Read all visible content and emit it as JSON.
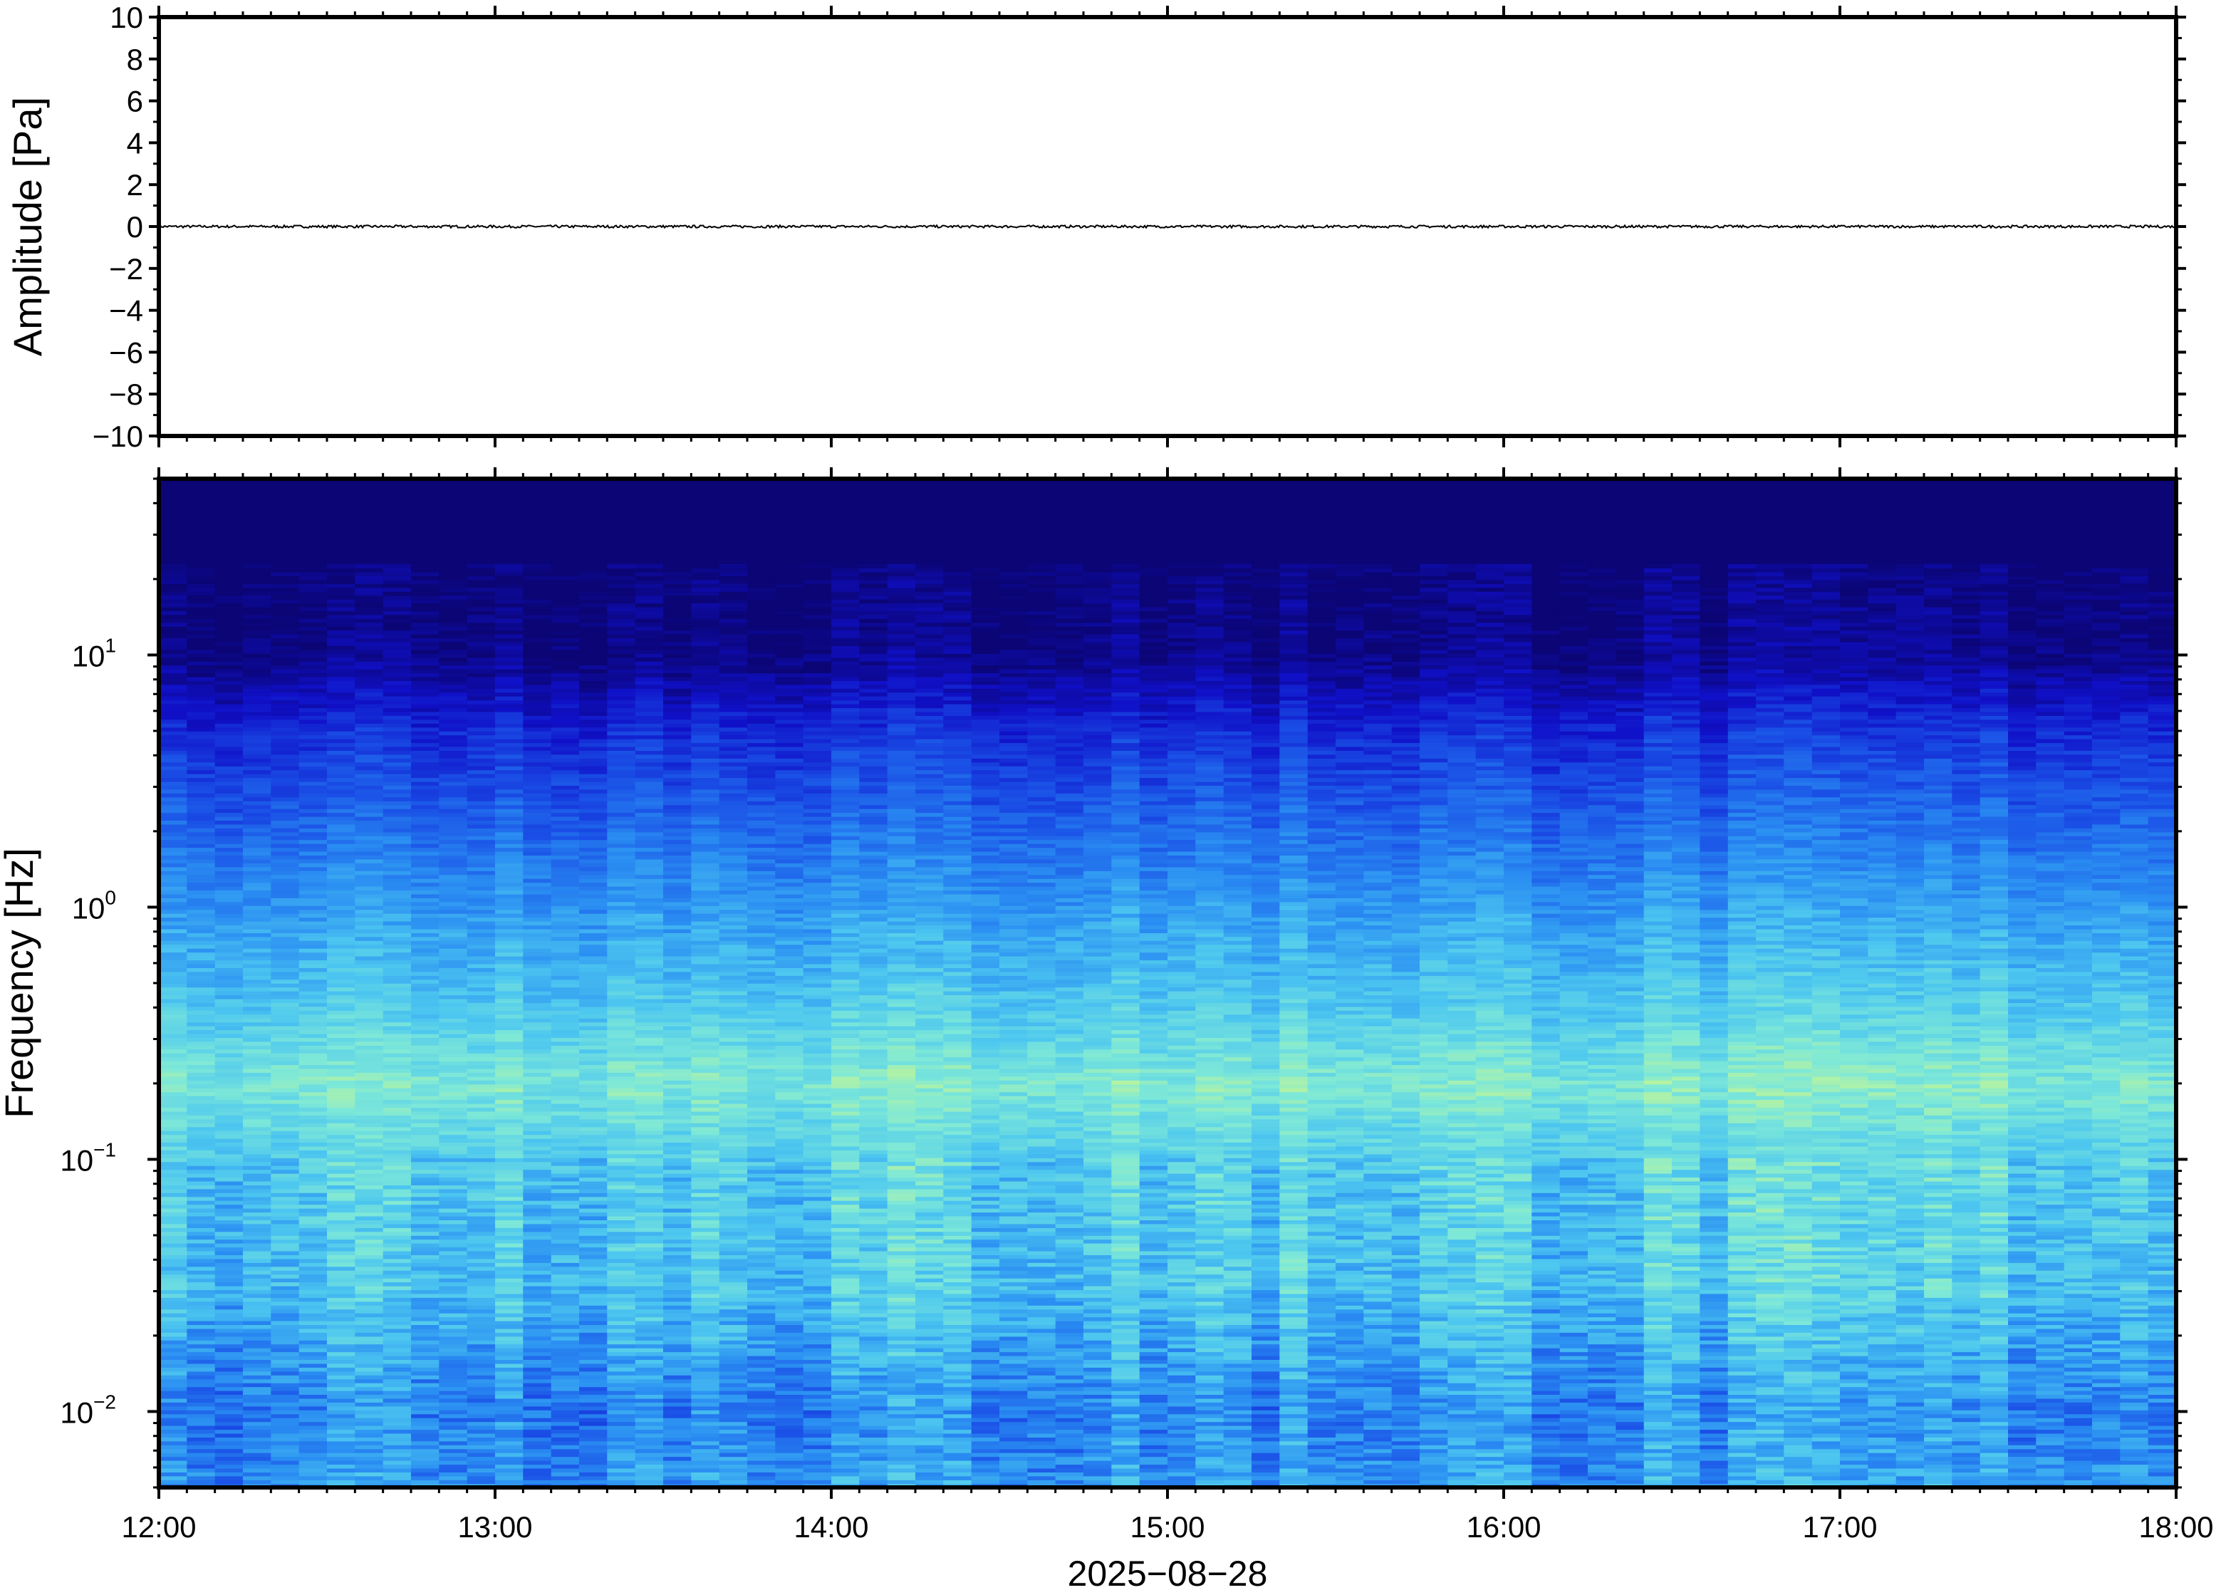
{
  "chart_data": [
    {
      "type": "line",
      "ylabel": "Amplitude [Pa]",
      "ylim": [
        -10,
        10
      ],
      "xlim": [
        "2025-08-28 12:00",
        "2025-08-28 18:00"
      ],
      "y_ticks": [
        10,
        8,
        6,
        4,
        2,
        0,
        -2,
        -4,
        -6,
        -8,
        -10
      ],
      "y_tick_labels": [
        "10",
        "8",
        "6",
        "4",
        "2",
        "0",
        "−2",
        "−4",
        "−6",
        "−8",
        "−10"
      ],
      "series": [
        {
          "x_range": [
            "2025-08-28 12:00",
            "2025-08-28 18:00"
          ],
          "approx_value": 0,
          "color": "#000000"
        }
      ]
    },
    {
      "type": "heatmap",
      "ylabel": "Frequency [Hz]",
      "yscale": "log",
      "ylim": [
        0.005,
        50
      ],
      "xlim": [
        "2025-08-28 12:00",
        "2025-08-28 18:00"
      ],
      "y_ticks": [
        0.01,
        0.1,
        1,
        10
      ],
      "y_tick_labels": [
        {
          "base": "10",
          "exp": "−2"
        },
        {
          "base": "10",
          "exp": "−1"
        },
        {
          "base": "10",
          "exp": "0"
        },
        {
          "base": "10",
          "exp": "1"
        }
      ],
      "x_ticks": [
        "2025-08-28 12:00",
        "2025-08-28 13:00",
        "2025-08-28 14:00",
        "2025-08-28 15:00",
        "2025-08-28 16:00",
        "2025-08-28 17:00",
        "2025-08-28 18:00"
      ],
      "x_tick_labels": [
        "12:00",
        "13:00",
        "14:00",
        "15:00",
        "16:00",
        "17:00",
        "18:00"
      ],
      "xlabel": "2025−08−28",
      "colormap": [
        "#0b0575",
        "#1010c8",
        "#1a4fe6",
        "#2a8ef2",
        "#4cc6f0",
        "#7de8d8",
        "#c9f78e"
      ],
      "description_profile": [
        {
          "freq_hz": 40,
          "level": 0.0
        },
        {
          "freq_hz": 10,
          "level": 0.05
        },
        {
          "freq_hz": 5,
          "level": 0.25
        },
        {
          "freq_hz": 2,
          "level": 0.42
        },
        {
          "freq_hz": 1,
          "level": 0.55
        },
        {
          "freq_hz": 0.4,
          "level": 0.7
        },
        {
          "freq_hz": 0.2,
          "level": 0.85
        },
        {
          "freq_hz": 0.1,
          "level": 0.72
        },
        {
          "freq_hz": 0.03,
          "level": 0.68
        },
        {
          "freq_hz": 0.01,
          "level": 0.5
        },
        {
          "freq_hz": 0.005,
          "level": 0.55
        }
      ]
    }
  ]
}
